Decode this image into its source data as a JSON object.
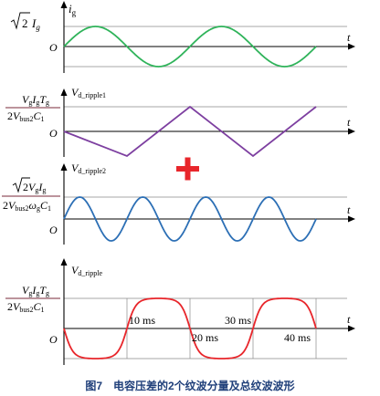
{
  "caption": "图7　电容压差的2个纹波分量及总纹波波形",
  "colors": {
    "panel1_wave": "#2fb35a",
    "panel2_wave": "#7d3fa0",
    "panel3_wave": "#2c6fb5",
    "panel4_wave": "#e8262b",
    "plus_sign": "#e8262b",
    "fraction_bar": "#7a2a3a"
  },
  "operator_symbol": "+",
  "panels": [
    {
      "id": "ig",
      "y_var": "i",
      "y_sub": "g",
      "t_label": "t",
      "origin_label": "O",
      "level_label": {
        "type": "sqrt",
        "num": "2",
        "rest": "I",
        "rest_sub": "g"
      }
    },
    {
      "id": "ripple1",
      "y_var": "V",
      "y_sub": "d_ripple1",
      "t_label": "t",
      "origin_label": "O",
      "level_label": {
        "type": "fraction",
        "numerator": "VgIgTg",
        "denominator": "2Vbus2C1"
      }
    },
    {
      "id": "ripple2",
      "y_var": "V",
      "y_sub": "d_ripple2",
      "t_label": "t",
      "origin_label": "O",
      "level_label": {
        "type": "fraction",
        "numerator": "√2VgIg",
        "denominator": "2Vbus2ωgC1"
      }
    },
    {
      "id": "total",
      "y_var": "V",
      "y_sub": "d_ripple",
      "t_label": "t",
      "origin_label": "O",
      "level_label": {
        "type": "fraction",
        "numerator": "VgIgTg",
        "denominator": "2Vbus2C1"
      },
      "time_marks": [
        "10 ms",
        "20 ms",
        "30 ms",
        "40 ms"
      ]
    }
  ]
}
